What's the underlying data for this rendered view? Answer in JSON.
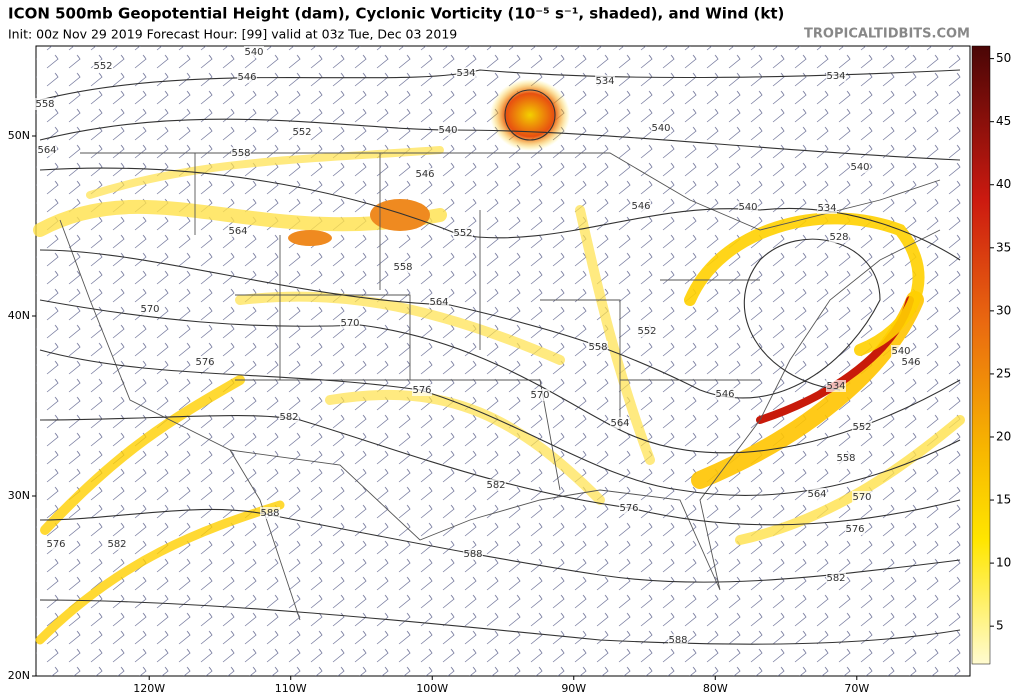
{
  "header": {
    "title": "ICON 500mb Geopotential Height (dam), Cyclonic Vorticity (10⁻⁵ s⁻¹, shaded), and Wind (kt)",
    "subtitle": "Init: 00z Nov 29 2019   Forecast Hour: [99]   valid at 03z Tue, Dec 03 2019",
    "watermark": "TROPICALTIDBITS.COM"
  },
  "map": {
    "lat_lim": [
      20,
      55
    ],
    "lon_lim": [
      -128,
      -62
    ],
    "lat_ticks": [
      {
        "value": 20,
        "label": "20N"
      },
      {
        "value": 30,
        "label": "30N"
      },
      {
        "value": 40,
        "label": "40N"
      },
      {
        "value": 50,
        "label": "50N"
      }
    ],
    "lon_ticks": [
      {
        "value": -120,
        "label": "120W"
      },
      {
        "value": -110,
        "label": "110W"
      },
      {
        "value": -100,
        "label": "100W"
      },
      {
        "value": -90,
        "label": "90W"
      },
      {
        "value": -80,
        "label": "80W"
      },
      {
        "value": -70,
        "label": "70W"
      }
    ],
    "contour_labels": [
      552,
      540,
      534,
      534,
      534,
      558,
      546,
      552,
      540,
      540,
      564,
      558,
      546,
      540,
      546,
      540,
      534,
      528,
      564,
      552,
      558,
      564,
      570,
      570,
      552,
      558,
      576,
      576,
      540,
      546,
      534,
      546,
      570,
      582,
      564,
      552,
      558,
      582,
      564,
      570,
      576,
      588,
      576,
      576,
      582,
      588,
      582,
      588
    ]
  },
  "colorbar": {
    "lim": [
      2,
      51
    ],
    "ticks": [
      5,
      10,
      15,
      20,
      25,
      30,
      35,
      40,
      45,
      50
    ]
  }
}
